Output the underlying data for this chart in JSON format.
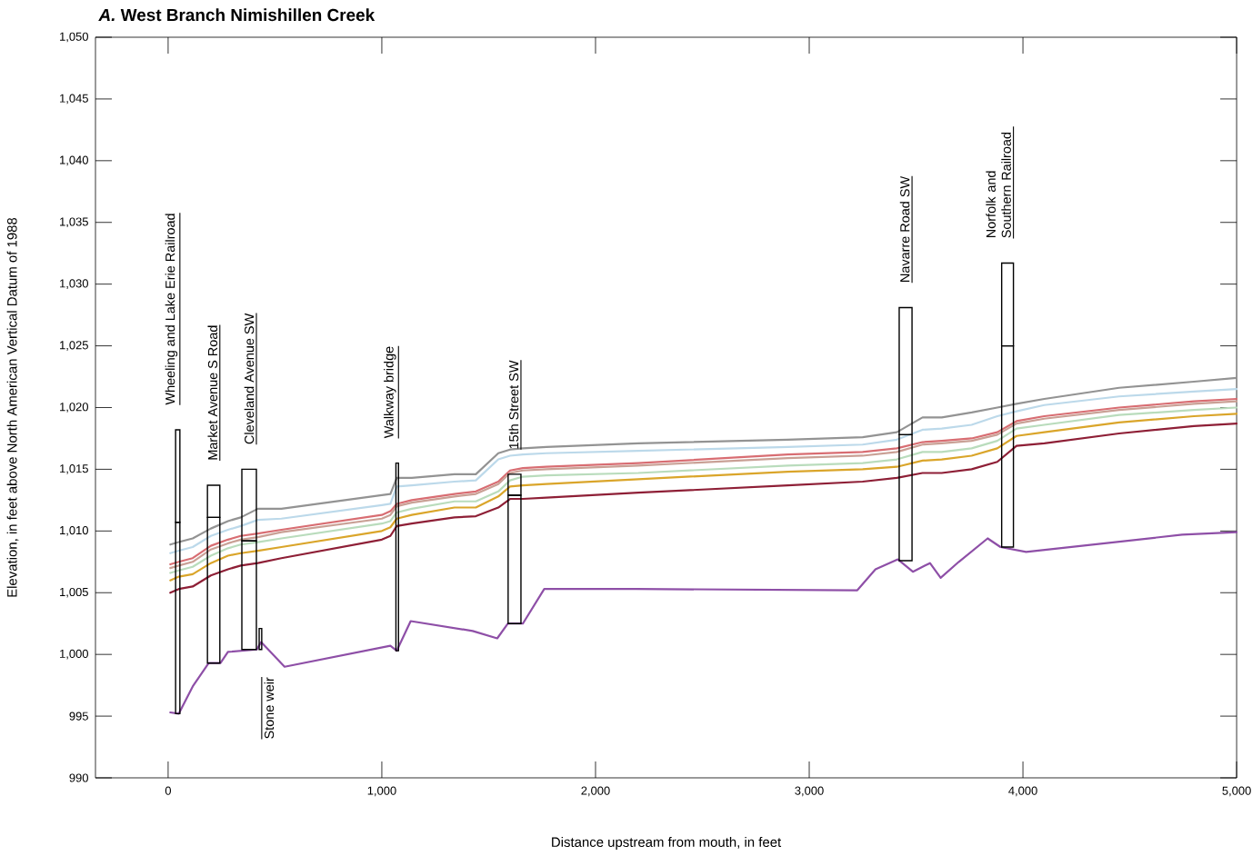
{
  "chart_data": {
    "type": "line",
    "title": "*A.* West Branch Nimishillen Creek",
    "xlabel": "Distance upstream from mouth, in feet",
    "ylabel": "Elevation, in feet above North American Vertical Datum of 1988",
    "xlim": [
      -340,
      5000
    ],
    "ylim": [
      990,
      1050
    ],
    "xticks": [
      0,
      {
        "value": 1000,
        "label": "1,000"
      },
      {
        "value": 2000,
        "label": "2,000"
      },
      {
        "value": 3000,
        "label": "3,000"
      },
      {
        "value": 4000,
        "label": "4,000"
      },
      {
        "value": 5000,
        "label": "5,000"
      }
    ],
    "yticks": [
      990,
      995,
      {
        "value": 1000,
        "label": "1,000"
      },
      {
        "value": 1005,
        "label": "1,005"
      },
      {
        "value": 1010,
        "label": "1,010"
      },
      {
        "value": 1015,
        "label": "1,015"
      },
      {
        "value": 1020,
        "label": "1,020"
      },
      {
        "value": 1025,
        "label": "1,025"
      },
      {
        "value": 1030,
        "label": "1,030"
      },
      {
        "value": 1035,
        "label": "1,035"
      },
      {
        "value": 1040,
        "label": "1,040"
      },
      {
        "value": 1045,
        "label": "1,045"
      },
      {
        "value": 1050,
        "label": "1,050"
      }
    ],
    "x": [
      10,
      50,
      115,
      200,
      280,
      340,
      420,
      530,
      1000,
      1040,
      1070,
      1140,
      1340,
      1440,
      1545,
      1600,
      1660,
      1770,
      2200,
      2900,
      3250,
      3410,
      3530,
      3620,
      3760,
      3880,
      3970,
      4100,
      4450,
      4800,
      5000
    ],
    "series": [
      {
        "color": "#939393",
        "values": [
          1008.9,
          1009.1,
          1009.4,
          1010.2,
          1010.8,
          1011.1,
          1011.8,
          1011.8,
          1012.9,
          1013.0,
          1014.3,
          1014.3,
          1014.6,
          1014.6,
          1016.3,
          1016.6,
          1016.7,
          1016.8,
          1017.1,
          1017.4,
          1017.6,
          1018.0,
          1019.2,
          1019.2,
          1019.6,
          1020.0,
          1020.3,
          1020.7,
          1021.6,
          1022.1,
          1022.4
        ]
      },
      {
        "color": "#bcd9ea",
        "values": [
          1008.2,
          1008.4,
          1008.7,
          1009.6,
          1010.1,
          1010.4,
          1010.9,
          1011.0,
          1012.1,
          1012.2,
          1013.6,
          1013.7,
          1014.0,
          1014.1,
          1015.8,
          1016.1,
          1016.2,
          1016.3,
          1016.5,
          1016.8,
          1017.0,
          1017.4,
          1018.2,
          1018.3,
          1018.6,
          1019.3,
          1019.7,
          1020.2,
          1020.9,
          1021.3,
          1021.5
        ]
      },
      {
        "color": "#d86d72",
        "values": [
          1007.3,
          1007.5,
          1007.8,
          1008.8,
          1009.3,
          1009.6,
          1009.8,
          1010.1,
          1011.3,
          1011.6,
          1012.2,
          1012.5,
          1013.0,
          1013.2,
          1014.0,
          1014.9,
          1015.1,
          1015.2,
          1015.5,
          1016.2,
          1016.4,
          1016.7,
          1017.2,
          1017.3,
          1017.5,
          1018.0,
          1018.9,
          1019.3,
          1020.0,
          1020.5,
          1020.7
        ]
      },
      {
        "color": "#c9a095",
        "values": [
          1007.0,
          1007.2,
          1007.5,
          1008.5,
          1009.0,
          1009.3,
          1009.5,
          1009.9,
          1011.0,
          1011.3,
          1012.0,
          1012.3,
          1012.8,
          1013.0,
          1013.8,
          1014.7,
          1014.9,
          1015.0,
          1015.3,
          1015.9,
          1016.1,
          1016.4,
          1017.0,
          1017.1,
          1017.3,
          1017.8,
          1018.7,
          1019.1,
          1019.8,
          1020.3,
          1020.5
        ]
      },
      {
        "color": "#b9dcbc",
        "values": [
          1006.6,
          1006.8,
          1007.1,
          1008.0,
          1008.6,
          1008.9,
          1009.1,
          1009.4,
          1010.6,
          1010.8,
          1011.5,
          1011.8,
          1012.4,
          1012.4,
          1013.2,
          1014.1,
          1014.4,
          1014.5,
          1014.7,
          1015.3,
          1015.5,
          1015.8,
          1016.4,
          1016.4,
          1016.7,
          1017.3,
          1018.3,
          1018.6,
          1019.4,
          1019.8,
          1020.0
        ]
      },
      {
        "color": "#daa52a",
        "values": [
          1006.0,
          1006.3,
          1006.5,
          1007.4,
          1008.0,
          1008.2,
          1008.4,
          1008.7,
          1010.0,
          1010.3,
          1011.0,
          1011.3,
          1011.9,
          1011.9,
          1012.8,
          1013.6,
          1013.7,
          1013.8,
          1014.2,
          1014.8,
          1015.0,
          1015.2,
          1015.7,
          1015.8,
          1016.1,
          1016.7,
          1017.7,
          1018.0,
          1018.8,
          1019.3,
          1019.5
        ]
      },
      {
        "color": "#8e1f36",
        "values": [
          1005.0,
          1005.3,
          1005.5,
          1006.4,
          1006.9,
          1007.2,
          1007.4,
          1007.8,
          1009.3,
          1009.6,
          1010.4,
          1010.6,
          1011.1,
          1011.2,
          1011.9,
          1012.6,
          1012.6,
          1012.7,
          1013.1,
          1013.7,
          1014.0,
          1014.3,
          1014.7,
          1014.7,
          1015.0,
          1015.6,
          1016.9,
          1017.1,
          1017.9,
          1018.5,
          1018.7
        ]
      },
      {
        "color": "#8e4fa7",
        "x": [
          10,
          50,
          115,
          190,
          245,
          280,
          415,
          435,
          545,
          1040,
          1070,
          1135,
          1425,
          1540,
          1590,
          1660,
          1760,
          2190,
          3225,
          3310,
          3415,
          3485,
          3565,
          3615,
          3700,
          3835,
          3895,
          4015,
          4745,
          5000
        ],
        "values": [
          995.3,
          995.2,
          997.4,
          999.3,
          999.3,
          1000.2,
          1000.4,
          1001.0,
          999.0,
          1000.7,
          1000.3,
          1002.7,
          1001.9,
          1001.3,
          1002.5,
          1002.5,
          1005.3,
          1005.3,
          1005.2,
          1006.9,
          1007.7,
          1006.7,
          1007.4,
          1006.2,
          1007.5,
          1009.4,
          1008.7,
          1008.3,
          1009.7,
          1009.9
        ]
      },
      {
        "type": "bar",
        "color": "#000000",
        "x": [
          45,
          213,
          379,
          432,
          1072,
          1621,
          3451,
          3928
        ],
        "base": [
          995.2,
          999.3,
          1000.4,
          1000.4,
          1000.3,
          1002.5,
          1007.6,
          1008.7
        ],
        "values": [
          15.5,
          11.8,
          8.8,
          1.7,
          15.2,
          10.4,
          10.2,
          16.3
        ]
      },
      {
        "type": "bar",
        "color": "#000000",
        "x": [
          45,
          213,
          379,
          432,
          1072,
          1621,
          3451,
          3928
        ],
        "base": [
          1010.7,
          1011.1,
          1009.2,
          null,
          null,
          1012.9,
          1017.8,
          1025.0
        ],
        "values": [
          7.5,
          2.6,
          5.8,
          null,
          null,
          1.7,
          10.3,
          6.7
        ]
      }
    ],
    "annotations": [
      "Wheeling and Lake Erie Railroad",
      "Market Avenue S Road",
      "Cleveland Avenue SW",
      "Stone weir",
      "Walkway bridge",
      "15th Street SW",
      "Navarre Road SW",
      "Norfolk and Southern Railroad"
    ]
  }
}
